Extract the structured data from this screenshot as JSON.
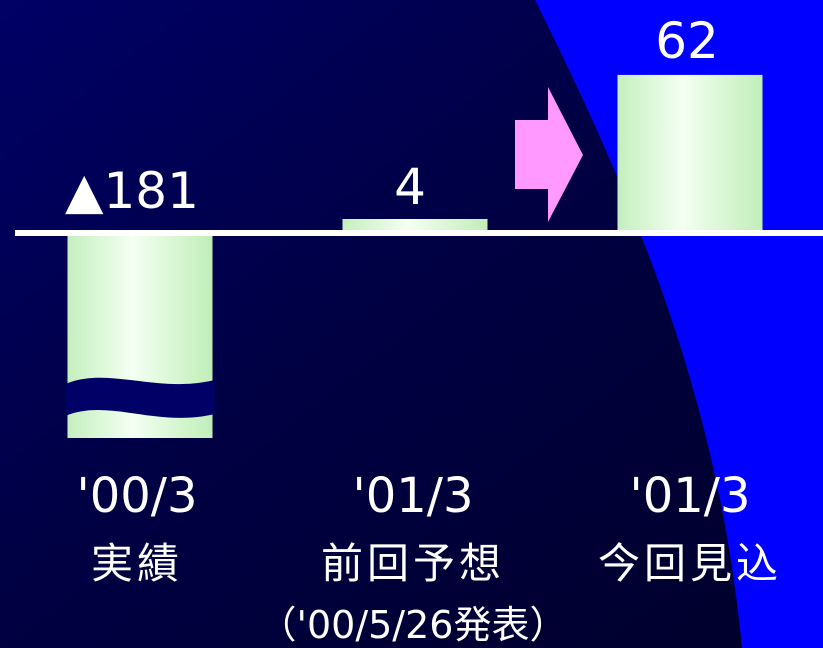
{
  "colors": {
    "background_dark": "#00002a",
    "background_navy": "#000066",
    "background_blue": "#0000ff",
    "bar_light": "#f0fff0",
    "bar_green": "#c8f2c0",
    "axis": "#ffffff",
    "arrow": "#ff99ff",
    "break_band": "#000066"
  },
  "chart_data": {
    "type": "bar",
    "categories": [
      "'00/3 実績",
      "'01/3 前回予想",
      "'01/3 今回見込"
    ],
    "values": [
      -181,
      4,
      62
    ],
    "value_labels": [
      "▲181",
      "4",
      "62"
    ],
    "category_top": [
      "'00/3",
      "'01/3",
      "'01/3"
    ],
    "category_bottom": [
      "実績",
      "前回予想",
      "今回見込"
    ],
    "note": "（'00/5/26発表）",
    "axis_break_on_first_bar": true,
    "arrow_between": [
      1,
      2
    ],
    "grid": false,
    "legend": "none"
  }
}
